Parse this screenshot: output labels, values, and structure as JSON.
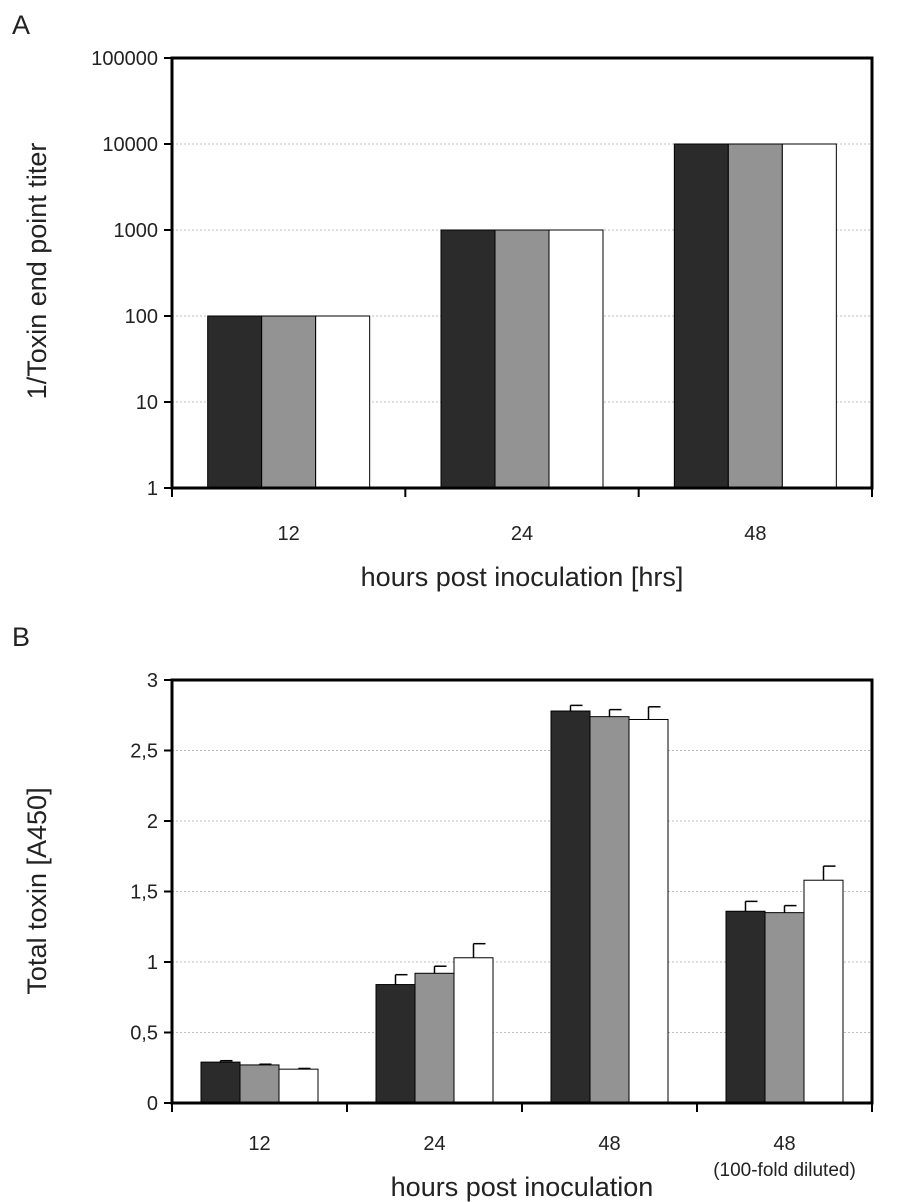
{
  "colors": {
    "series": [
      "#2b2b2b",
      "#939393",
      "#ffffff"
    ],
    "grid": "#bdbdbd",
    "axis": "#000000"
  },
  "chart_data": [
    {
      "panel_label": "A",
      "type": "bar",
      "scale": "log",
      "ylabel": "1/Toxin end point titer",
      "xlabel": "hours post inoculation [hrs]",
      "categories": [
        "12",
        "24",
        "48"
      ],
      "category_sublabels": [
        "",
        "",
        ""
      ],
      "ylim": [
        1,
        100000
      ],
      "yticks": [
        1,
        10,
        100,
        1000,
        10000,
        100000
      ],
      "ytick_labels": [
        "1",
        "10",
        "100",
        "1000",
        "10000",
        "100000"
      ],
      "grid": true,
      "series": [
        {
          "values": [
            100,
            1000,
            10000
          ]
        },
        {
          "values": [
            100,
            1000,
            10000
          ]
        },
        {
          "values": [
            100,
            1000,
            10000
          ]
        }
      ]
    },
    {
      "panel_label": "B",
      "type": "bar",
      "scale": "linear",
      "ylabel": "Total toxin [A450]",
      "xlabel": "hours post inoculation",
      "categories": [
        "12",
        "24",
        "48",
        "48"
      ],
      "category_sublabels": [
        "",
        "",
        "",
        "(100-fold diluted)"
      ],
      "ylim": [
        0,
        3
      ],
      "yticks": [
        0,
        0.5,
        1,
        1.5,
        2,
        2.5,
        3
      ],
      "ytick_labels": [
        "0",
        "0,5",
        "1",
        "1,5",
        "2",
        "2,5",
        "3"
      ],
      "grid": true,
      "series": [
        {
          "values": [
            0.29,
            0.84,
            2.78,
            1.36
          ],
          "errors": [
            0.01,
            0.07,
            0.04,
            0.07
          ]
        },
        {
          "values": [
            0.27,
            0.92,
            2.74,
            1.35
          ],
          "errors": [
            0.005,
            0.05,
            0.05,
            0.05
          ]
        },
        {
          "values": [
            0.24,
            1.03,
            2.72,
            1.58
          ],
          "errors": [
            0.005,
            0.1,
            0.09,
            0.1
          ]
        }
      ]
    }
  ]
}
